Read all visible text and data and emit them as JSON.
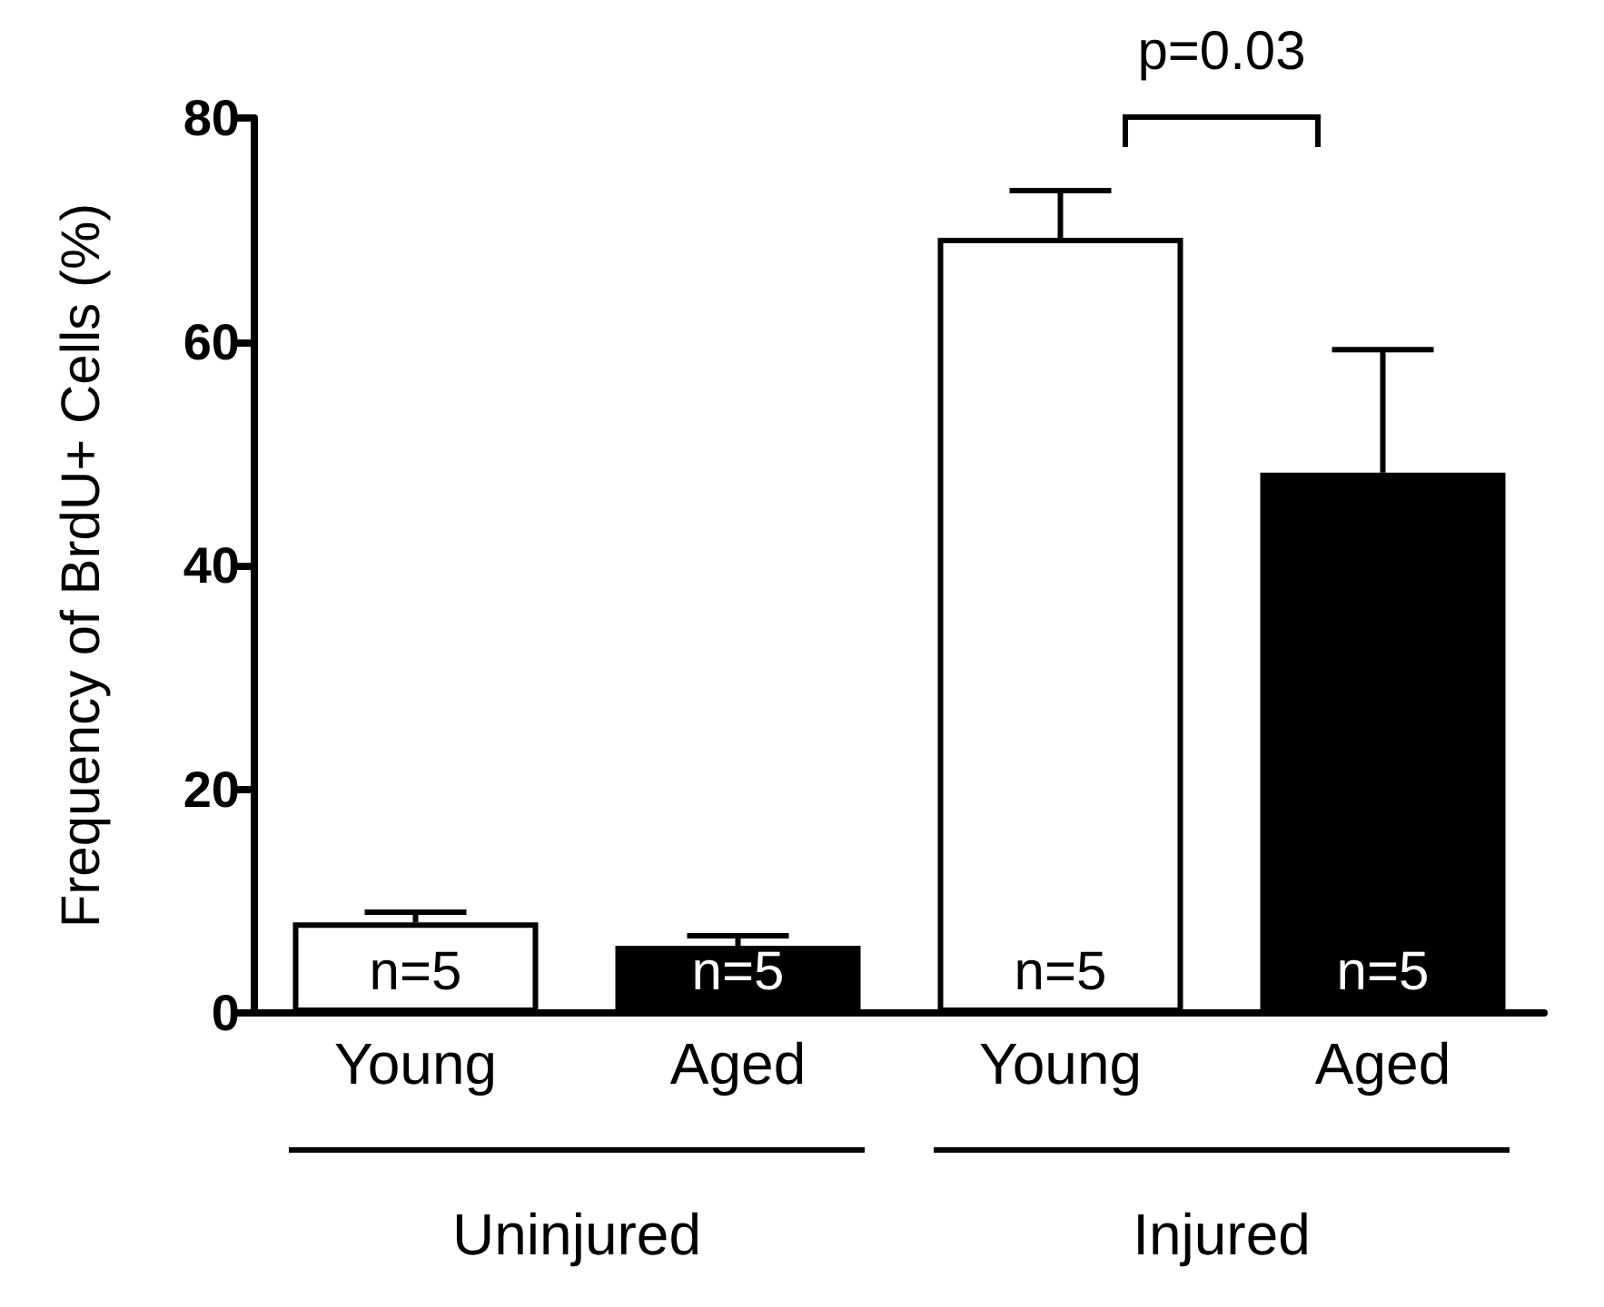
{
  "chart_data": {
    "type": "bar",
    "ylabel": "Frequency of BrdU+ Cells (%)",
    "categories": [
      "Young",
      "Aged",
      "Young",
      "Aged"
    ],
    "values": [
      8.1,
      6.0,
      69.3,
      48.3
    ],
    "colors": [
      "#ffffff",
      "#000000",
      "#ffffff",
      "#000000"
    ],
    "errors": [
      [
        8.1,
        9.0
      ],
      [
        6.0,
        6.9
      ],
      [
        69.3,
        73.5
      ],
      [
        48.3,
        59.3
      ]
    ],
    "ylim": [
      0,
      80
    ],
    "yticks": [
      0,
      20,
      40,
      60,
      80
    ],
    "annotations": [
      "p=0.03",
      "Uninjured",
      "Injured",
      "n=5",
      "n=5",
      "n=5",
      "n=5"
    ],
    "grid": false
  }
}
